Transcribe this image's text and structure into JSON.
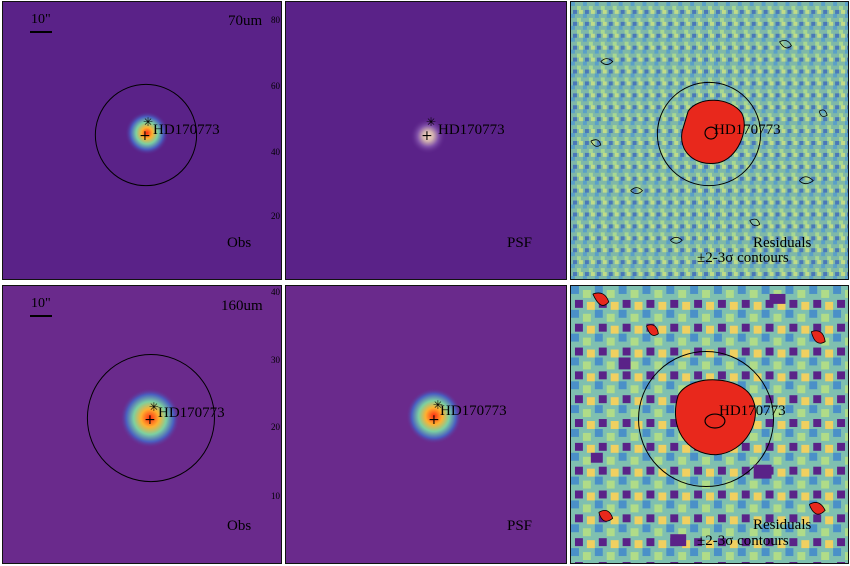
{
  "target": "HD170773",
  "rows": [
    {
      "band": "70um",
      "scale": "10\"",
      "panels": {
        "obs": "Obs",
        "psf": "PSF",
        "res1": "Residuals",
        "res2": "±2-3σ contours"
      },
      "axis_ticks": [
        "80",
        "60",
        "40",
        "20"
      ]
    },
    {
      "band": "160um",
      "scale": "10\"",
      "panels": {
        "obs": "Obs",
        "psf": "PSF",
        "res1": "Residuals",
        "res2": "±2-3σ contours"
      },
      "axis_ticks": [
        "40",
        "30",
        "20",
        "10"
      ]
    }
  ],
  "colors": {
    "background_obs": "#5a1f8a",
    "residual_bg": "#7fbfb0",
    "source_core": "#e8281c",
    "source_mid": "#f5b642",
    "frame": "#c83a2a"
  }
}
